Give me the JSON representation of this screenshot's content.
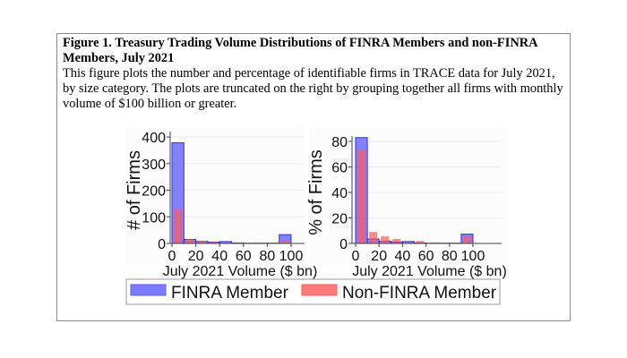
{
  "caption": {
    "title": "Figure 1. Treasury Trading Volume Distributions of FINRA Members and non-FINRA Members, July 2021",
    "body": "This figure plots the number and percentage of identifiable firms in TRACE data for July 2021, by size category.  The plots are truncated on the right by grouping together all firms with monthly volume of $100 billion or greater."
  },
  "legend": {
    "position": "bottom",
    "items": [
      {
        "label": "FINRA Member",
        "color": "#5a5aff"
      },
      {
        "label": "Non-FINRA Member",
        "color": "#ff5a5a"
      }
    ]
  },
  "chart_data": [
    {
      "type": "bar",
      "xlabel": "July 2021 Volume ($ bn)",
      "ylabel": "# of Firms",
      "xlim": [
        0,
        110
      ],
      "ylim": [
        0,
        400
      ],
      "xticks": [
        "0",
        "20",
        "40",
        "60",
        "80",
        "100"
      ],
      "yticks": [
        "0",
        "100",
        "200",
        "300",
        "400"
      ],
      "grid": true,
      "bin_starts": [
        0,
        10,
        20,
        30,
        40,
        50,
        60,
        70,
        80,
        90
      ],
      "bin_width": 10,
      "series": [
        {
          "name": "FINRA Member",
          "values": [
            378,
            15,
            8,
            5,
            7,
            2,
            1,
            1,
            1,
            33
          ]
        },
        {
          "name": "Non-FINRA Member",
          "values": [
            128,
            15,
            10,
            6,
            2,
            3,
            2,
            0,
            0,
            10
          ]
        }
      ]
    },
    {
      "type": "bar",
      "xlabel": "July 2021 Volume ($ bn)",
      "ylabel": "% of Firms",
      "xlim": [
        0,
        110
      ],
      "ylim": [
        0,
        85
      ],
      "xticks": [
        "0",
        "20",
        "40",
        "60",
        "80",
        "100"
      ],
      "yticks": [
        "0",
        "20",
        "40",
        "60",
        "80"
      ],
      "grid": true,
      "bin_starts": [
        0,
        10,
        20,
        30,
        40,
        50,
        60,
        70,
        80,
        90
      ],
      "bin_width": 10,
      "series": [
        {
          "name": "FINRA Member",
          "values": [
            83,
            3.5,
            1.8,
            1.2,
            1.5,
            0.4,
            0.2,
            0.2,
            0.2,
            7.3
          ]
        },
        {
          "name": "Non-FINRA Member",
          "values": [
            73,
            9,
            5.5,
            3.5,
            1,
            2,
            0.8,
            0,
            0,
            5.5
          ]
        }
      ]
    }
  ]
}
